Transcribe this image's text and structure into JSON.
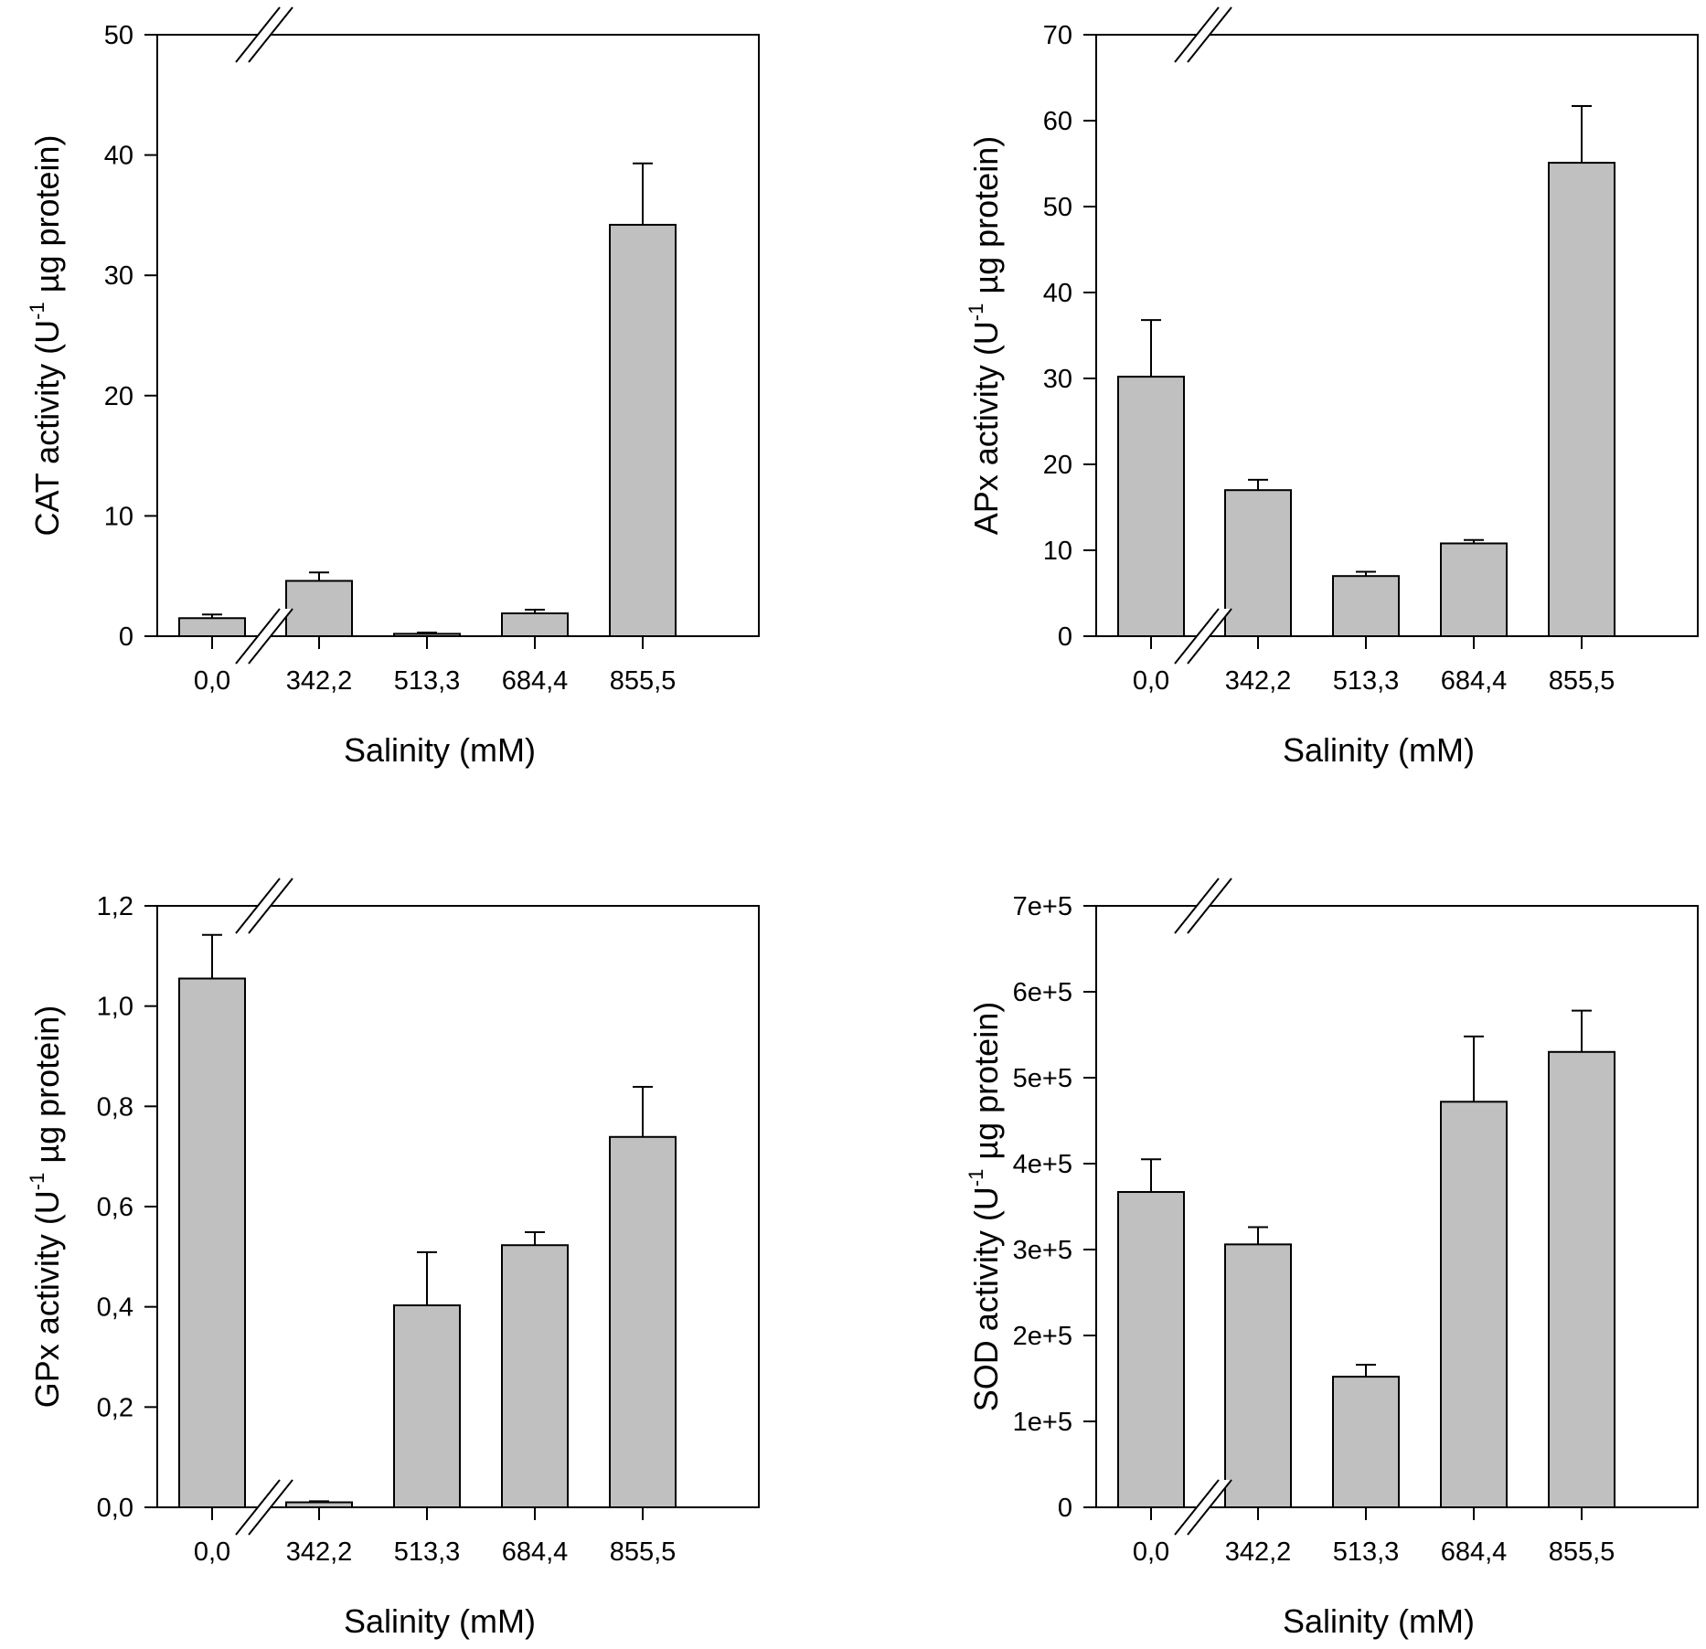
{
  "chart_data": [
    {
      "type": "bar",
      "id": "cat",
      "categories": [
        "0,0",
        "342,2",
        "513,3",
        "684,4",
        "855,5"
      ],
      "values": [
        1.5,
        4.6,
        0.2,
        1.9,
        34.2
      ],
      "errors": [
        0.3,
        0.7,
        0.1,
        0.3,
        5.1
      ],
      "ylim": [
        0,
        50
      ],
      "yticks": [
        0,
        10,
        20,
        30,
        40,
        50
      ],
      "ytick_labels": [
        "0",
        "10",
        "20",
        "30",
        "40",
        "50"
      ],
      "xlabel": "Salinity (mM)",
      "ylabel_prefix": "CAT  activity (U",
      "ylabel_sup": "-1",
      "ylabel_suffix": " µg protein)",
      "bar_color": "#c0c0c0"
    },
    {
      "type": "bar",
      "id": "apx",
      "categories": [
        "0,0",
        "342,2",
        "513,3",
        "684,4",
        "855,5"
      ],
      "values": [
        30.2,
        17.0,
        7.0,
        10.8,
        55.1
      ],
      "errors": [
        6.6,
        1.2,
        0.5,
        0.4,
        6.6
      ],
      "ylim": [
        0,
        70
      ],
      "yticks": [
        0,
        10,
        20,
        30,
        40,
        50,
        60,
        70
      ],
      "ytick_labels": [
        "0",
        "10",
        "20",
        "30",
        "40",
        "50",
        "60",
        "70"
      ],
      "xlabel": "Salinity (mM)",
      "ylabel_prefix": "APx activity (U",
      "ylabel_sup": "-1",
      "ylabel_suffix": " µg protein)",
      "bar_color": "#c0c0c0"
    },
    {
      "type": "bar",
      "id": "gpx",
      "categories": [
        "0,0",
        "342,2",
        "513,3",
        "684,4",
        "855,5"
      ],
      "values": [
        1.055,
        0.01,
        0.403,
        0.523,
        0.739
      ],
      "errors": [
        0.087,
        0.002,
        0.106,
        0.026,
        0.1
      ],
      "ylim": [
        0,
        1.2
      ],
      "yticks": [
        0,
        0.2,
        0.4,
        0.6,
        0.8,
        1.0,
        1.2
      ],
      "ytick_labels": [
        "0,0",
        "0,2",
        "0,4",
        "0,6",
        "0,8",
        "1,0",
        "1,2"
      ],
      "xlabel": "Salinity (mM)",
      "ylabel_prefix": "GPx activity (U",
      "ylabel_sup": "-1",
      "ylabel_suffix": " µg protein)",
      "bar_color": "#c0c0c0"
    },
    {
      "type": "bar",
      "id": "sod",
      "categories": [
        "0,0",
        "342,2",
        "513,3",
        "684,4",
        "855,5"
      ],
      "values": [
        367000,
        306000,
        152000,
        472000,
        530000
      ],
      "errors": [
        38000,
        20000,
        14000,
        76000,
        48000
      ],
      "ylim": [
        0,
        700000
      ],
      "yticks": [
        0,
        100000,
        200000,
        300000,
        400000,
        500000,
        600000,
        700000
      ],
      "ytick_labels": [
        "0",
        "1e+5",
        "2e+5",
        "3e+5",
        "4e+5",
        "5e+5",
        "6e+5",
        "7e+5"
      ],
      "xlabel": "Salinity (mM)",
      "ylabel_prefix": "SOD activity (U",
      "ylabel_sup": "-1",
      "ylabel_suffix": " µg protein)",
      "bar_color": "#c0c0c0"
    }
  ]
}
